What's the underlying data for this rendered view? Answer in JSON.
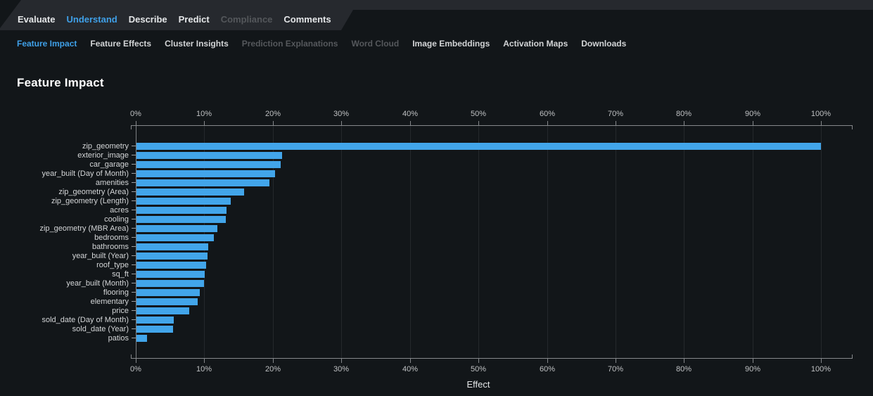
{
  "page_title": "Feature Impact",
  "nav": {
    "tabs": [
      {
        "label": "Evaluate",
        "state": "normal"
      },
      {
        "label": "Understand",
        "state": "active"
      },
      {
        "label": "Describe",
        "state": "normal"
      },
      {
        "label": "Predict",
        "state": "normal"
      },
      {
        "label": "Compliance",
        "state": "disabled"
      },
      {
        "label": "Comments",
        "state": "normal"
      }
    ]
  },
  "subnav": {
    "tabs": [
      {
        "label": "Feature Impact",
        "state": "active"
      },
      {
        "label": "Feature Effects",
        "state": "normal"
      },
      {
        "label": "Cluster Insights",
        "state": "normal"
      },
      {
        "label": "Prediction Explanations",
        "state": "disabled"
      },
      {
        "label": "Word Cloud",
        "state": "disabled"
      },
      {
        "label": "Image Embeddings",
        "state": "normal"
      },
      {
        "label": "Activation Maps",
        "state": "normal"
      },
      {
        "label": "Downloads",
        "state": "normal"
      }
    ]
  },
  "chart_data": {
    "type": "bar",
    "orientation": "horizontal",
    "title": "Feature Impact",
    "xlabel": "Effect",
    "ylabel": "",
    "xlim": [
      0,
      104.6
    ],
    "x_tick_step": 10,
    "x_tick_labels": [
      "0%",
      "10%",
      "20%",
      "30%",
      "40%",
      "50%",
      "60%",
      "70%",
      "80%",
      "90%",
      "100%"
    ],
    "grid": true,
    "legend": "none",
    "categories": [
      "zip_geometry",
      "exterior_image",
      "car_garage",
      "year_built (Day of Month)",
      "amenities",
      "zip_geometry (Area)",
      "zip_geometry (Length)",
      "acres",
      "cooling",
      "zip_geometry (MBR Area)",
      "bedrooms",
      "bathrooms",
      "year_built (Year)",
      "roof_type",
      "sq_ft",
      "year_built (Month)",
      "flooring",
      "elementary",
      "price",
      "sold_date (Day of Month)",
      "sold_date (Year)",
      "patios"
    ],
    "values": [
      100,
      21.4,
      21.1,
      20.3,
      19.5,
      15.8,
      13.9,
      13.2,
      13.1,
      11.9,
      11.4,
      10.6,
      10.5,
      10.3,
      10.1,
      10.0,
      9.3,
      9.0,
      7.8,
      5.5,
      5.4,
      1.6
    ],
    "value_unit": "%",
    "bar_color": "#42a5ea"
  },
  "colors": {
    "page_background": "#121619",
    "header_bar": "#26292e",
    "accent_blue": "#3fa0e8",
    "bar_blue": "#42a5ea",
    "axis_gray": "#85888b",
    "gridline": "#24282c",
    "tick_label": "#bfc1c3",
    "category_label": "#d3d5d7",
    "disabled_text": "#55585c"
  }
}
